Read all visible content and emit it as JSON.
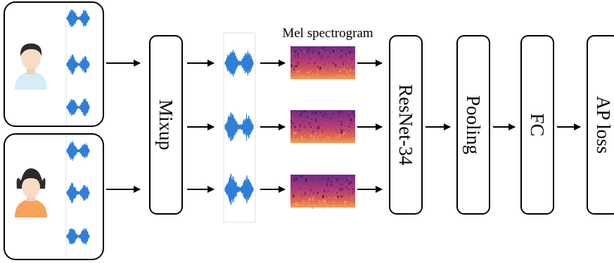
{
  "speakers": [
    {
      "name": "male-speaker",
      "icon": "man-avatar-icon",
      "shirt_color": "#d6ecf6",
      "hair_color": "#2b2b2b"
    },
    {
      "name": "female-speaker",
      "icon": "woman-avatar-icon",
      "shirt_color": "#f6a45a",
      "hair_color": "#2b2b2b"
    }
  ],
  "mixup": {
    "label": "Mixup"
  },
  "spectrogram": {
    "label": "Mel spectrogram"
  },
  "blocks": {
    "resnet": "ResNet-34",
    "pooling": "Pooling",
    "fc": "FC",
    "loss": "AP loss"
  },
  "colors": {
    "waveform": "#2f7ed8",
    "box_stroke": "#000000",
    "spectrogram_dark": "#3a1650",
    "spectrogram_mid": "#b13a78",
    "spectrogram_bright": "#f3a05a"
  }
}
